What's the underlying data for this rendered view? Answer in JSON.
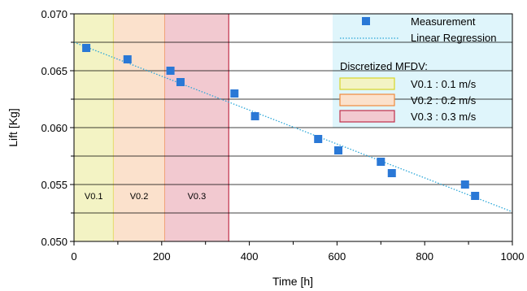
{
  "chart_data": {
    "type": "scatter",
    "xlabel": "Time [h]",
    "ylabel": "Lift [Kg]",
    "xlim": [
      0,
      1000
    ],
    "ylim": [
      0.05,
      0.07
    ],
    "x_ticks": [
      "0",
      "200",
      "400",
      "600",
      "800",
      "1000"
    ],
    "y_ticks": [
      "0.050",
      "0.055",
      "0.060",
      "0.065",
      "0.070"
    ],
    "grid": "horizontal",
    "minor_y_step": 0.0025,
    "legend_position": "top-right",
    "series": [
      {
        "name": "Measurement",
        "marker": "square",
        "color": "#2a78d6",
        "points": [
          {
            "x": 28,
            "y": 0.067
          },
          {
            "x": 122,
            "y": 0.066
          },
          {
            "x": 220,
            "y": 0.065
          },
          {
            "x": 243,
            "y": 0.064
          },
          {
            "x": 366,
            "y": 0.063
          },
          {
            "x": 413,
            "y": 0.061
          },
          {
            "x": 557,
            "y": 0.059
          },
          {
            "x": 603,
            "y": 0.058
          },
          {
            "x": 700,
            "y": 0.057
          },
          {
            "x": 725,
            "y": 0.056
          },
          {
            "x": 892,
            "y": 0.055
          },
          {
            "x": 915,
            "y": 0.054
          }
        ]
      },
      {
        "name": "Linear Regression",
        "style": "dotted",
        "color": "#29a6d8",
        "x": [
          0,
          1000
        ],
        "y": [
          0.0675,
          0.0526
        ]
      }
    ],
    "regions_title": "Discretized MFDV:",
    "regions": [
      {
        "label": "V0.1",
        "legend": "V0.1 : 0.1 m/s",
        "x_start": 0,
        "x_end": 90,
        "fill": "#f3f3c4",
        "stroke": "#d6d629"
      },
      {
        "label": "V0.2",
        "legend": "V0.2 : 0.2 m/s",
        "x_start": 90,
        "x_end": 207,
        "fill": "#fbe1cc",
        "stroke": "#f08a3c"
      },
      {
        "label": "V0.3",
        "legend": "V0.3 : 0.3 m/s",
        "x_start": 207,
        "x_end": 353,
        "fill": "#f2c9d0",
        "stroke": "#c0304a"
      }
    ],
    "region_label_y": 0.054,
    "legend_background": "#dff5fb"
  }
}
